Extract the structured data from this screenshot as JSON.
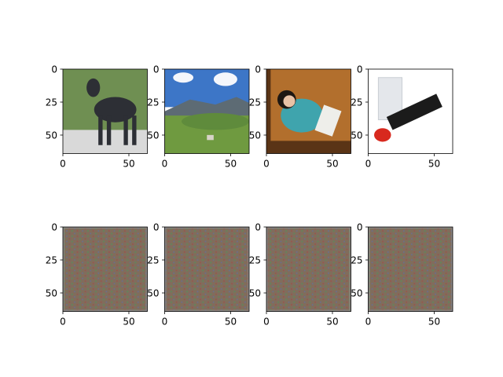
{
  "figure": {
    "background": "#ffffff"
  },
  "chart_data": {
    "type": "image-grid",
    "rows": 2,
    "cols": 4,
    "axis": {
      "xlim": [
        0,
        64
      ],
      "ylim": [
        64,
        0
      ],
      "xticks": [
        0,
        50
      ],
      "yticks": [
        0,
        25,
        50
      ]
    },
    "panels": [
      {
        "row": 0,
        "col": 0,
        "content": "photo-dog",
        "colors": {
          "bg": "#6f8f52",
          "road": "#d9d9d9",
          "fur": "#2d2f35"
        }
      },
      {
        "row": 0,
        "col": 1,
        "content": "photo-landscape",
        "colors": {
          "sky": "#3d76c7",
          "cloud": "#f4f6fb",
          "mountain": "#5d6b74",
          "hill": "#5f8b3c",
          "field": "#6f9a40"
        }
      },
      {
        "row": 0,
        "col": 2,
        "content": "photo-child",
        "colors": {
          "floor": "#b26f2d",
          "floor_dark": "#5a3416",
          "shirt": "#3fa4ad",
          "paper": "#eeeeea",
          "hair": "#1e1712",
          "skin": "#e8c2a6"
        }
      },
      {
        "row": 0,
        "col": 3,
        "content": "photo-lipstick",
        "colors": {
          "bg": "#ffffff",
          "cap": "#e4e7eb",
          "body": "#1b1b1b",
          "tip": "#d8291e"
        }
      },
      {
        "row": 1,
        "col": 0,
        "content": "noise",
        "colors": {
          "base": "#806d5c",
          "dot_a": "#b04141",
          "dot_b": "#41a35a",
          "dot_c": "#5b6fb0",
          "edge": "#8c8c8c"
        }
      },
      {
        "row": 1,
        "col": 1,
        "content": "noise",
        "colors": {
          "base": "#806d5c",
          "dot_a": "#b04141",
          "dot_b": "#41a35a",
          "dot_c": "#5b6fb0",
          "edge": "#8c8c8c"
        }
      },
      {
        "row": 1,
        "col": 2,
        "content": "noise",
        "colors": {
          "base": "#806d5c",
          "dot_a": "#b04141",
          "dot_b": "#41a35a",
          "dot_c": "#5b6fb0",
          "edge": "#8c8c8c"
        }
      },
      {
        "row": 1,
        "col": 3,
        "content": "noise",
        "colors": {
          "base": "#806d5c",
          "dot_a": "#b04141",
          "dot_b": "#41a35a",
          "dot_c": "#5b6fb0",
          "edge": "#8c8c8c"
        }
      }
    ]
  }
}
